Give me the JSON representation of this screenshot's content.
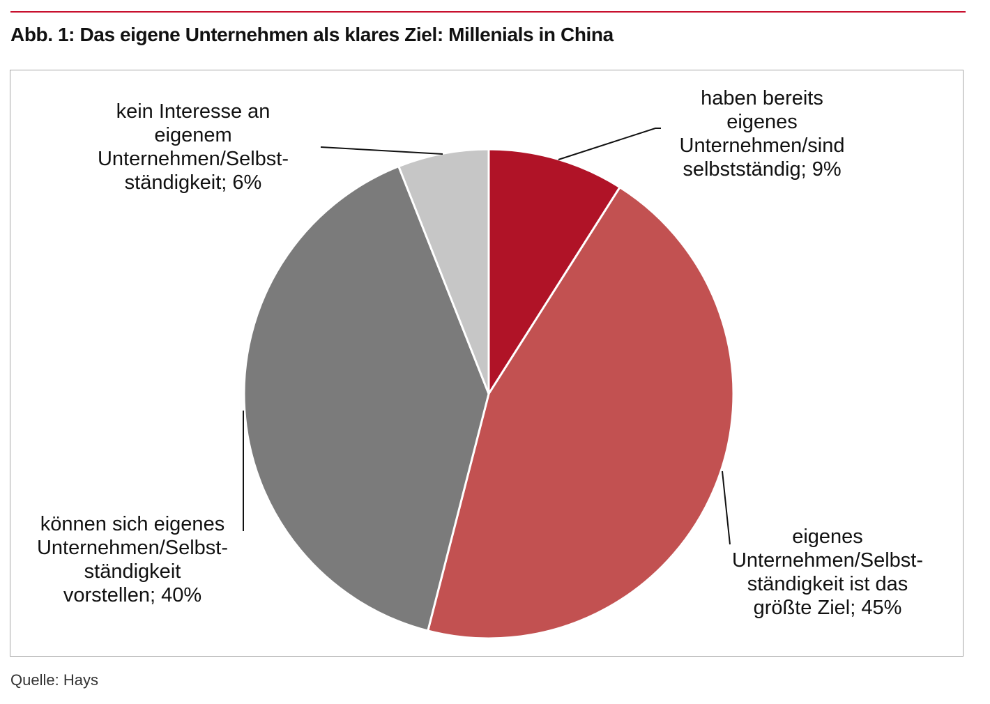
{
  "title": "Abb. 1: Das eigene Unternehmen als klares Ziel: Millenials in China",
  "source": "Quelle: Hays",
  "chart_data": {
    "type": "pie",
    "title": "Abb. 1: Das eigene Unternehmen als klares Ziel: Millenials in China",
    "start_angle": "12 o'clock",
    "direction": "clockwise",
    "slices": [
      {
        "label_lines": [
          "haben bereits",
          "eigenes",
          "Unternehmen/sind",
          "selbstständig; 9%"
        ],
        "value": 9,
        "color": "#b01327"
      },
      {
        "label_lines": [
          "eigenes",
          "Unternehmen/Selbst-",
          "ständigkeit ist das",
          "größte Ziel; 45%"
        ],
        "value": 45,
        "color": "#c25151"
      },
      {
        "label_lines": [
          "können sich eigenes",
          "Unternehmen/Selbst-",
          "ständigkeit",
          "vorstellen; 40%"
        ],
        "value": 40,
        "color": "#7b7b7b"
      },
      {
        "label_lines": [
          "kein Interesse an",
          "eigenem",
          "Unternehmen/Selbst-",
          "ständigkeit; 6%"
        ],
        "value": 6,
        "color": "#c6c6c6"
      }
    ]
  }
}
